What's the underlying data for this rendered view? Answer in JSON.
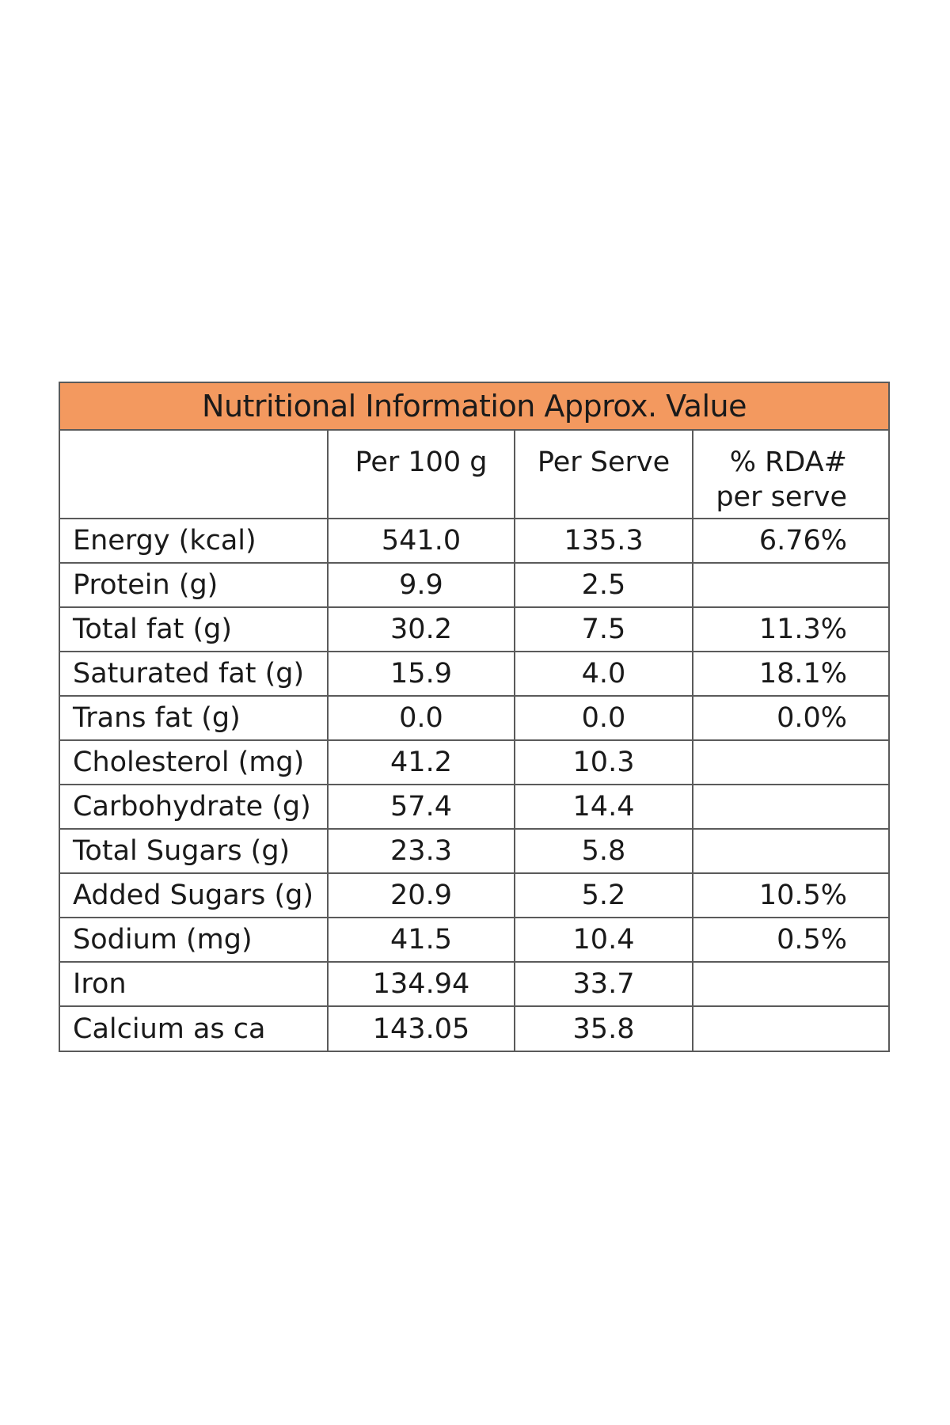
{
  "panel": {
    "title": "Nutritional Information Approx. Value",
    "headers": {
      "name": "",
      "per_100g": "Per 100 g",
      "per_serve": "Per Serve",
      "rda_line1": "% RDA#",
      "rda_line2": "per serve"
    },
    "rows": [
      {
        "name": "Energy (kcal)",
        "per_100g": "541.0",
        "per_serve": "135.3",
        "rda": "6.76%"
      },
      {
        "name": "Protein (g)",
        "per_100g": "9.9",
        "per_serve": "2.5",
        "rda": ""
      },
      {
        "name": "Total fat (g)",
        "per_100g": "30.2",
        "per_serve": "7.5",
        "rda": "11.3%"
      },
      {
        "name": "Saturated fat (g)",
        "per_100g": "15.9",
        "per_serve": "4.0",
        "rda": "18.1%"
      },
      {
        "name": "Trans fat (g)",
        "per_100g": "0.0",
        "per_serve": "0.0",
        "rda": "0.0%"
      },
      {
        "name": "Cholesterol (mg)",
        "per_100g": "41.2",
        "per_serve": "10.3",
        "rda": ""
      },
      {
        "name": "Carbohydrate (g)",
        "per_100g": "57.4",
        "per_serve": "14.4",
        "rda": ""
      },
      {
        "name": "Total Sugars (g)",
        "per_100g": "23.3",
        "per_serve": "5.8",
        "rda": ""
      },
      {
        "name": "Added Sugars (g)",
        "per_100g": "20.9",
        "per_serve": "5.2",
        "rda": "10.5%"
      },
      {
        "name": "Sodium (mg)",
        "per_100g": "41.5",
        "per_serve": "10.4",
        "rda": "0.5%"
      },
      {
        "name": "Iron",
        "per_100g": "134.94",
        "per_serve": "33.7",
        "rda": ""
      },
      {
        "name": "Calcium as ca",
        "per_100g": "143.05",
        "per_serve": "35.8",
        "rda": ""
      }
    ]
  },
  "colors": {
    "title_background": "#f3995f",
    "border": "#5a5a5a"
  }
}
